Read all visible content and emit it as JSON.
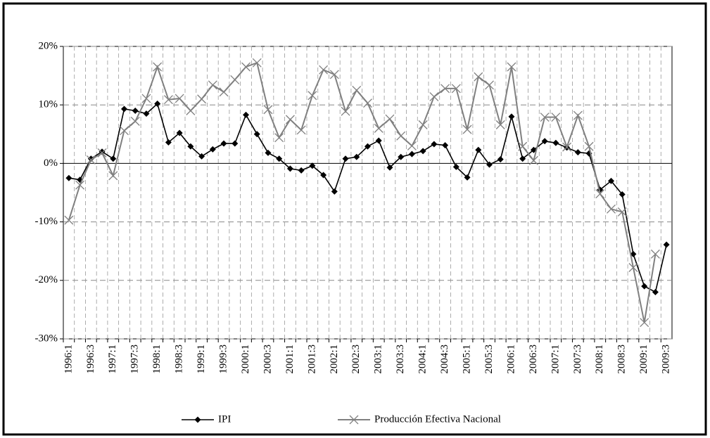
{
  "chart_data": {
    "type": "line",
    "categories": [
      "1996:1",
      null,
      "1996:3",
      null,
      "1997:1",
      null,
      "1997:3",
      null,
      "1998:1",
      null,
      "1998:3",
      null,
      "1999:1",
      null,
      "1999:3",
      null,
      "2000:1",
      null,
      "2000:3",
      null,
      "2001:1",
      null,
      "2001:3",
      null,
      "2002:1",
      null,
      "2002:3",
      null,
      "2003:1",
      null,
      "2003:3",
      null,
      "2004:1",
      null,
      "2004:3",
      null,
      "2005:1",
      null,
      "2005:3",
      null,
      "2006:1",
      null,
      "2006:3",
      null,
      "2007:1",
      null,
      "2007:3",
      null,
      "2008:1",
      null,
      "2008:3",
      null,
      "2009:1",
      null,
      "2009:3"
    ],
    "series": [
      {
        "name": "IPI",
        "color": "#000000",
        "marker": "diamond",
        "values": [
          -2.5,
          -2.8,
          0.8,
          2.0,
          0.8,
          9.3,
          9.0,
          8.5,
          10.2,
          3.6,
          5.2,
          2.9,
          1.2,
          2.4,
          3.4,
          3.4,
          8.3,
          5.0,
          1.8,
          0.8,
          -0.9,
          -1.2,
          -0.4,
          -2.0,
          -4.8,
          0.8,
          1.1,
          2.9,
          3.9,
          -0.7,
          1.1,
          1.6,
          2.1,
          3.3,
          3.1,
          -0.6,
          -2.4,
          2.3,
          -0.2,
          0.7,
          8.0,
          0.8,
          2.3,
          3.8,
          3.5,
          2.7,
          1.9,
          1.7,
          -4.5,
          -3.0,
          -5.3,
          -15.5,
          -21.0,
          -22.0,
          -13.9
        ]
      },
      {
        "name": "Producción Efectiva Nacional",
        "color": "#808080",
        "marker": "x",
        "values": [
          -9.7,
          -3.7,
          0.6,
          1.8,
          -2.1,
          5.6,
          7.2,
          11.1,
          16.5,
          10.9,
          11.1,
          9.0,
          11.0,
          13.4,
          12.2,
          14.3,
          16.5,
          17.2,
          9.2,
          4.4,
          7.5,
          5.7,
          11.6,
          16.0,
          15.2,
          8.9,
          12.5,
          10.3,
          6.0,
          7.6,
          4.7,
          3.0,
          6.6,
          11.4,
          12.8,
          12.8,
          5.8,
          14.8,
          13.4,
          6.6,
          16.5,
          2.9,
          0.5,
          7.9,
          7.9,
          2.8,
          8.2,
          2.9,
          -5.2,
          -7.8,
          -8.3,
          -17.8,
          -27.2,
          -15.5,
          null
        ]
      }
    ],
    "ylim": [
      -30,
      20
    ],
    "yticks": [
      {
        "value": -30,
        "label": "-30%"
      },
      {
        "value": -20,
        "label": "-20%"
      },
      {
        "value": -10,
        "label": "-10%"
      },
      {
        "value": 0,
        "label": "0%"
      },
      {
        "value": 10,
        "label": "10%"
      },
      {
        "value": 20,
        "label": "20%"
      }
    ],
    "grid": true,
    "legend": "bottom"
  }
}
